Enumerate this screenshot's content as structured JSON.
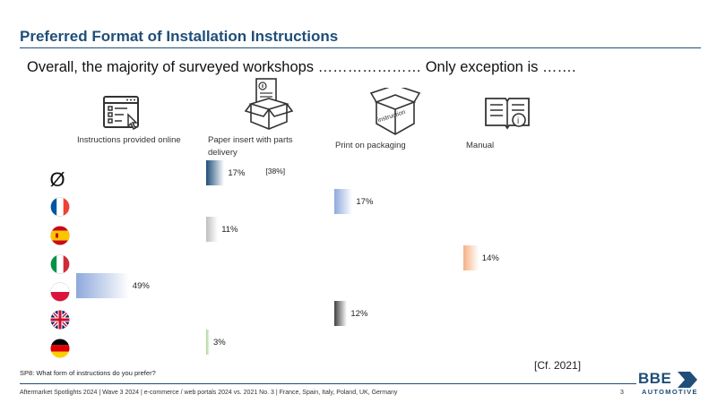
{
  "title": "Preferred Format of Installation Instructions",
  "headline": "Overall, the majority of surveyed workshops ………………… Only exception is …….",
  "question": "SP8: What form of instructions do you prefer?",
  "cf_note": "[Cf. 2021]",
  "footer": "Aftermarket Spotlights 2024 | Wave 3 2024 | e-commerce / web portals 2024 vs. 2021 No. 3 | France, Spain, Italy, Poland, UK, Germany",
  "page_number": "3",
  "logo": {
    "main": "BBE",
    "sub": "AUTOMOTIVE"
  },
  "average_symbol": "Ø",
  "categories": [
    {
      "label": "Instructions provided online",
      "icon": "online-form-icon"
    },
    {
      "label": "Paper insert with parts delivery",
      "icon": "box-with-paper-icon"
    },
    {
      "label": "Print on packaging",
      "icon": "instruction-box-icon"
    },
    {
      "label": "Manual",
      "icon": "open-book-icon"
    }
  ],
  "rows": [
    {
      "name": "average",
      "icon": "average-symbol"
    },
    {
      "name": "France",
      "icon": "flag-france-icon"
    },
    {
      "name": "Spain",
      "icon": "flag-spain-icon"
    },
    {
      "name": "Italy",
      "icon": "flag-italy-icon"
    },
    {
      "name": "Poland",
      "icon": "flag-poland-icon"
    },
    {
      "name": "UK",
      "icon": "flag-uk-icon"
    },
    {
      "name": "Germany",
      "icon": "flag-germany-icon"
    }
  ],
  "chart_data": {
    "type": "bar",
    "categories": [
      "Instructions provided online",
      "Paper insert with parts delivery",
      "Print on packaging",
      "Manual"
    ],
    "points": [
      {
        "row": "average",
        "category": "Paper insert with parts delivery",
        "value": 17,
        "label": "17%",
        "note": "[38%]",
        "color": "#1f4e79"
      },
      {
        "row": "France",
        "category": "Print on packaging",
        "value": 17,
        "label": "17%",
        "color": "#8ea9db"
      },
      {
        "row": "Spain",
        "category": "Paper insert with parts delivery",
        "value": 11,
        "label": "11%",
        "color": "#bfbfbf"
      },
      {
        "row": "Italy",
        "category": "Manual",
        "value": 14,
        "label": "14%",
        "color": "#f4b183"
      },
      {
        "row": "Poland",
        "category": "Instructions provided online",
        "value": 49,
        "label": "49%",
        "color": "#8ea9db"
      },
      {
        "row": "UK",
        "category": "Print on packaging",
        "value": 12,
        "label": "12%",
        "color": "#404040"
      },
      {
        "row": "Germany",
        "category": "Paper insert with parts delivery",
        "value": 3,
        "label": "3%",
        "color": "#a9d18e"
      }
    ]
  }
}
